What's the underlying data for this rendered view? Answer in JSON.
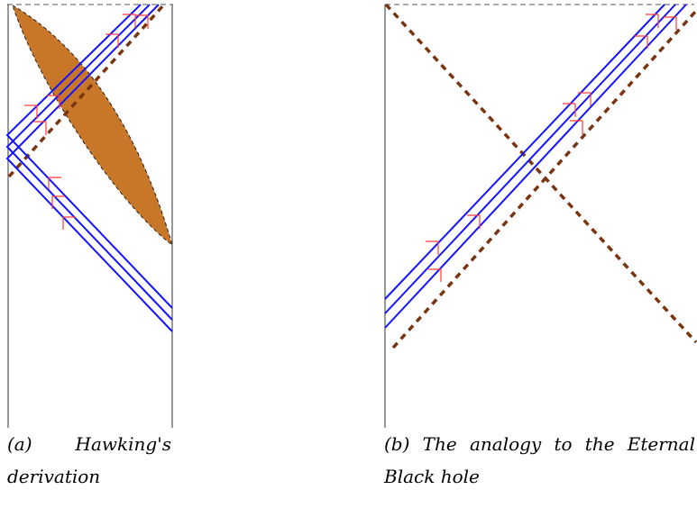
{
  "panels": [
    {
      "caption_label": "(a)",
      "caption_text": "Hawking's derivation"
    },
    {
      "caption_label": "(b)",
      "caption_text": "The analogy to the Eternal Black hole"
    }
  ],
  "colors": {
    "boundary": "#555555",
    "horizon_dashed": "#7a3410",
    "light_rays": "#1414ff",
    "markers": "#ff3a3a",
    "collapsing_shell": "#c87628"
  }
}
